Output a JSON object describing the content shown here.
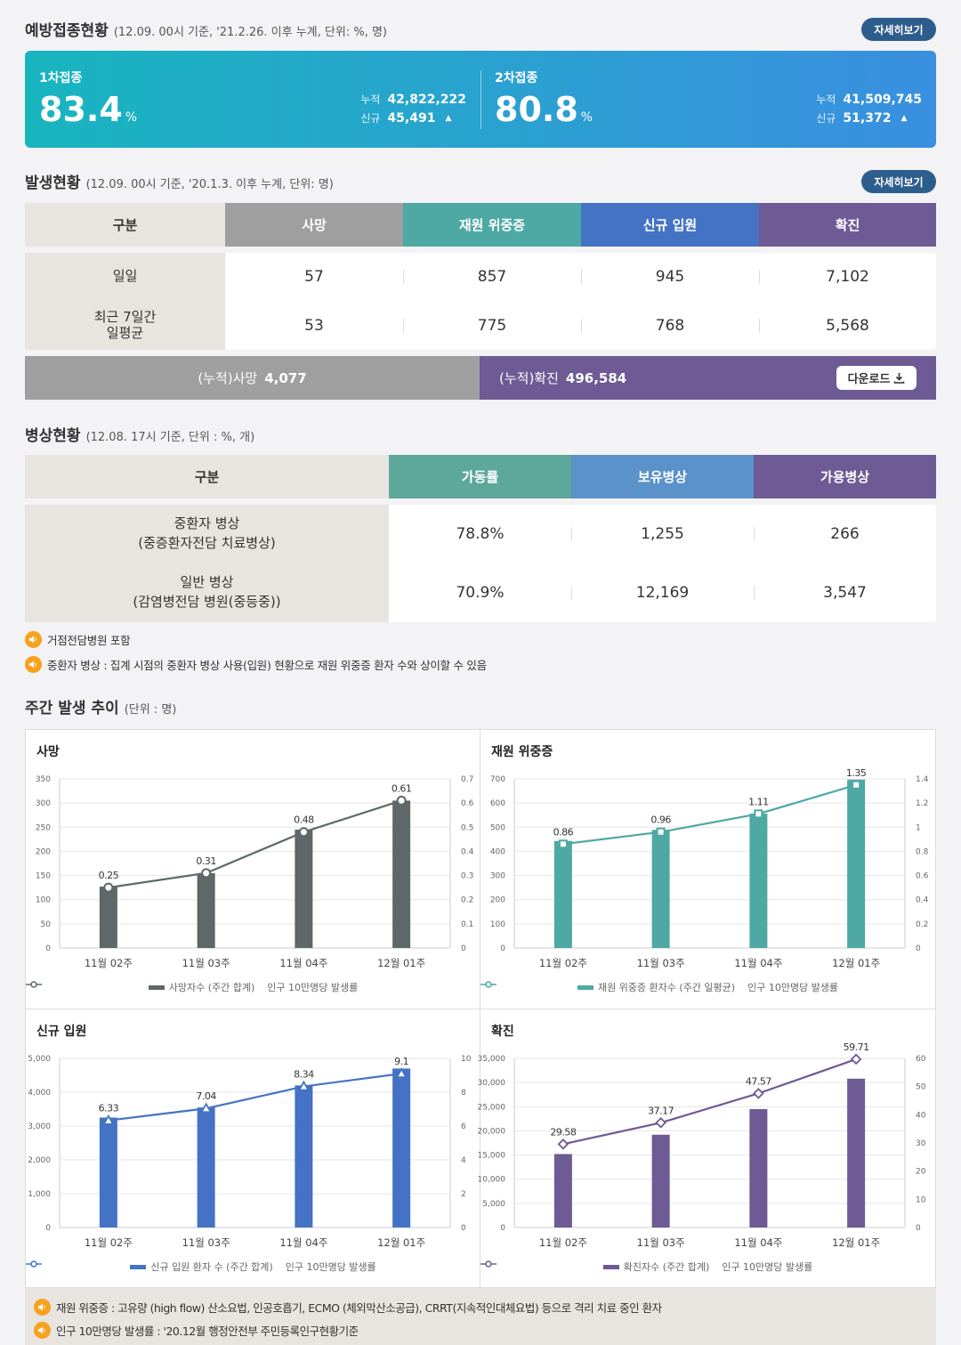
{
  "vaccination": {
    "title": "예방접종현황",
    "subtitle": "(12.09. 00시 기준, '21.2.26. 이후 누계, 단위: %, 명)",
    "more_label": "자세히보기",
    "dose1": {
      "label": "1차접종",
      "rate": "83.4",
      "unit": "%",
      "cum_key": "누적",
      "cum_val": "42,822,222",
      "new_key": "신규",
      "new_val": "45,491"
    },
    "dose2": {
      "label": "2차접종",
      "rate": "80.8",
      "unit": "%",
      "cum_key": "누적",
      "cum_val": "41,509,745",
      "new_key": "신규",
      "new_val": "51,372"
    }
  },
  "occurrence": {
    "title": "발생현황",
    "subtitle": "(12.09. 00시 기준, '20.1.3. 이후 누계, 단위: 명)",
    "more_label": "자세히보기",
    "headers": [
      "구분",
      "사망",
      "재원 위중증",
      "신규 입원",
      "확진"
    ],
    "header_colors": [
      "#e8e4df",
      "#9f9f9f",
      "#4ea8a4",
      "#4473c5",
      "#6e5a94"
    ],
    "rows": [
      {
        "label": "일일",
        "values": [
          "57",
          "857",
          "945",
          "7,102"
        ]
      },
      {
        "label": "최근 7일간\n일평균",
        "values": [
          "53",
          "775",
          "768",
          "5,568"
        ]
      }
    ],
    "cum_death_label": "(누적)사망",
    "cum_death_value": "4,077",
    "cum_conf_label": "(누적)확진",
    "cum_conf_value": "496,584",
    "download_label": "다운로드"
  },
  "beds": {
    "title": "병상현황",
    "subtitle": "(12.08. 17시 기준, 단위 : %, 개)",
    "headers": [
      "구분",
      "가동률",
      "보유병상",
      "가용병상"
    ],
    "header_colors": [
      "#e8e4df",
      "#5ea79b",
      "#5a92c9",
      "#6e5a94"
    ],
    "rows": [
      {
        "label": "중환자 병상\n(중증환자전담 치료병상)",
        "values": [
          "78.8%",
          "1,255",
          "266"
        ]
      },
      {
        "label": "일반 병상\n(감염병전담 병원(중등중))",
        "values": [
          "70.9%",
          "12,169",
          "3,547"
        ]
      }
    ],
    "notes": [
      "거점전담병원 포함",
      "중환자 병상 : 집계 시점의 중환자 병상 사용(입원) 현황으로 재원 위중증 환자 수와 상이할 수 있음"
    ]
  },
  "weekly": {
    "title": "주간 발생 추이",
    "subtitle": "(단위 : 명)"
  },
  "chart_data": [
    {
      "type": "bar",
      "title": "사망",
      "categories": [
        "11월 02주",
        "11월 03주",
        "11월 04주",
        "12월 01주"
      ],
      "series": [
        {
          "name": "사망자수 (주간 합계)",
          "type": "bar",
          "axis": "left",
          "values": [
            127,
            155,
            245,
            305
          ],
          "color": "#5e6869"
        },
        {
          "name": "인구 10만명당 발생률",
          "type": "line",
          "axis": "right",
          "values": [
            0.25,
            0.31,
            0.48,
            0.61
          ],
          "labels": [
            "0.25",
            "0.31",
            "0.48",
            "0.61"
          ],
          "color": "#5e6869",
          "marker": "circle"
        }
      ],
      "ylim_left": [
        0,
        350
      ],
      "yticks_left": [
        "0",
        "50",
        "100",
        "150",
        "200",
        "250",
        "300",
        "350"
      ],
      "ylim_right": [
        0,
        0.7
      ],
      "yticks_right": [
        "0",
        "0.1",
        "0.2",
        "0.3",
        "0.4",
        "0.5",
        "0.6",
        "0.7"
      ]
    },
    {
      "type": "bar",
      "title": "재원 위중증",
      "categories": [
        "11월 02주",
        "11월 03주",
        "11월 04주",
        "12월 01주"
      ],
      "series": [
        {
          "name": "재원 위중증 환자수 (주간 일평균)",
          "type": "bar",
          "axis": "left",
          "values": [
            443,
            489,
            556,
            697
          ],
          "color": "#4ea8a4"
        },
        {
          "name": "인구 10만명당 발생률",
          "type": "line",
          "axis": "right",
          "values": [
            0.86,
            0.96,
            1.11,
            1.35
          ],
          "labels": [
            "0.86",
            "0.96",
            "1.11",
            "1.35"
          ],
          "color": "#4ea8a4",
          "marker": "square"
        }
      ],
      "ylim_left": [
        0,
        700
      ],
      "yticks_left": [
        "0",
        "100",
        "200",
        "300",
        "400",
        "500",
        "600",
        "700"
      ],
      "ylim_right": [
        0,
        1.4
      ],
      "yticks_right": [
        "0",
        "0.2",
        "0.4",
        "0.6",
        "0.8",
        "1",
        "1.2",
        "1.4"
      ]
    },
    {
      "type": "bar",
      "title": "신규 입원",
      "categories": [
        "11월 02주",
        "11월 03주",
        "11월 04주",
        "12월 01주"
      ],
      "series": [
        {
          "name": "신규 입원 환자 수 (주간 합계)",
          "type": "bar",
          "axis": "left",
          "values": [
            3250,
            3550,
            4200,
            4700
          ],
          "color": "#4473c5"
        },
        {
          "name": "인구 10만명당 발생률",
          "type": "line",
          "axis": "right",
          "values": [
            6.33,
            7.04,
            8.34,
            9.1
          ],
          "labels": [
            "6.33",
            "7.04",
            "8.34",
            "9.1"
          ],
          "color": "#4473c5",
          "marker": "triangle"
        }
      ],
      "ylim_left": [
        0,
        5000
      ],
      "yticks_left": [
        "0",
        "1,000",
        "2,000",
        "3,000",
        "4,000",
        "5,000"
      ],
      "ylim_right": [
        0,
        10
      ],
      "yticks_right": [
        "0",
        "2",
        "4",
        "6",
        "8",
        "10"
      ]
    },
    {
      "type": "bar",
      "title": "확진",
      "categories": [
        "11월 02주",
        "11월 03주",
        "11월 04주",
        "12월 01주"
      ],
      "series": [
        {
          "name": "확진자수 (주간 합계)",
          "type": "bar",
          "axis": "left",
          "values": [
            15200,
            19200,
            24500,
            30800
          ],
          "color": "#6e5a94"
        },
        {
          "name": "인구 10만명당 발생률",
          "type": "line",
          "axis": "right",
          "values": [
            29.58,
            37.17,
            47.57,
            59.71
          ],
          "labels": [
            "29.58",
            "37.17",
            "47.57",
            "59.71"
          ],
          "color": "#6e5a94",
          "marker": "diamond"
        }
      ],
      "ylim_left": [
        0,
        35000
      ],
      "yticks_left": [
        "0",
        "5,000",
        "10,000",
        "15,000",
        "20,000",
        "25,000",
        "30,000",
        "35,000"
      ],
      "ylim_right": [
        0,
        60
      ],
      "yticks_right": [
        "0",
        "10",
        "20",
        "30",
        "40",
        "50",
        "60"
      ]
    }
  ],
  "footnotes": [
    "재원 위중증 : 고유량 (high flow) 산소요법, 인공호흡기, ECMO (체외막산소공급), CRRT(지속적인대체요법) 등으로 격리 치료 중인 환자",
    "인구 10만명당 발생률 : '20.12월 행정안전부 주민등록인구현황기준"
  ]
}
